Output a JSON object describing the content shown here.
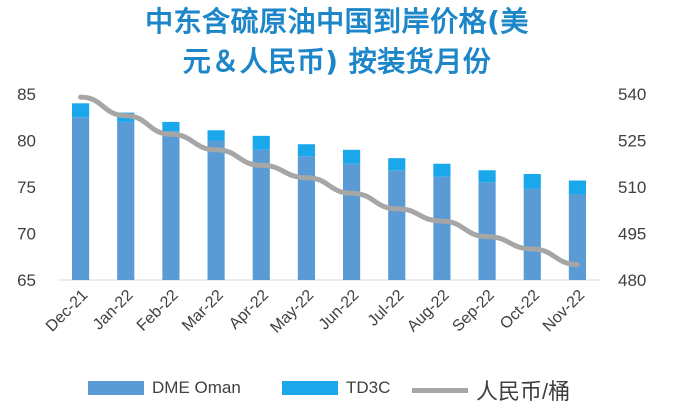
{
  "chart_data": {
    "type": "bar",
    "title_lines": [
      "中东含硫原油中国到岸价格(美",
      "元＆人民币) 按装货月份"
    ],
    "categories": [
      "Dec-21",
      "Jan-22",
      "Feb-22",
      "Mar-22",
      "Apr-22",
      "May-22",
      "Jun-22",
      "Jul-22",
      "Aug-22",
      "Sep-22",
      "Oct-22",
      "Nov-22"
    ],
    "series": [
      {
        "name": "DME Oman",
        "type": "bar",
        "stack": "main",
        "axis": "left",
        "color": "#5b9bd5",
        "values": [
          82.5,
          82.0,
          81.0,
          80.0,
          79.0,
          78.3,
          77.5,
          76.8,
          76.1,
          75.5,
          74.8,
          74.2
        ]
      },
      {
        "name": "TD3C",
        "type": "bar",
        "stack": "main",
        "axis": "left",
        "color": "#1aa7ec",
        "values": [
          1.5,
          1.0,
          1.0,
          1.1,
          1.5,
          1.3,
          1.5,
          1.3,
          1.4,
          1.3,
          1.6,
          1.5
        ]
      },
      {
        "name": "人民币/桶",
        "type": "line",
        "axis": "right",
        "color": "#a6a6a6",
        "values": [
          539,
          533,
          527,
          522,
          517,
          513,
          508,
          503,
          499,
          494,
          490,
          485
        ]
      }
    ],
    "y_left": {
      "min": 65,
      "max": 85,
      "ticks": [
        "65",
        "70",
        "75",
        "80",
        "85"
      ]
    },
    "y_right": {
      "min": 480,
      "max": 540,
      "ticks": [
        "480",
        "495",
        "510",
        "525",
        "540"
      ]
    },
    "legend_position": "bottom",
    "grid": false
  }
}
